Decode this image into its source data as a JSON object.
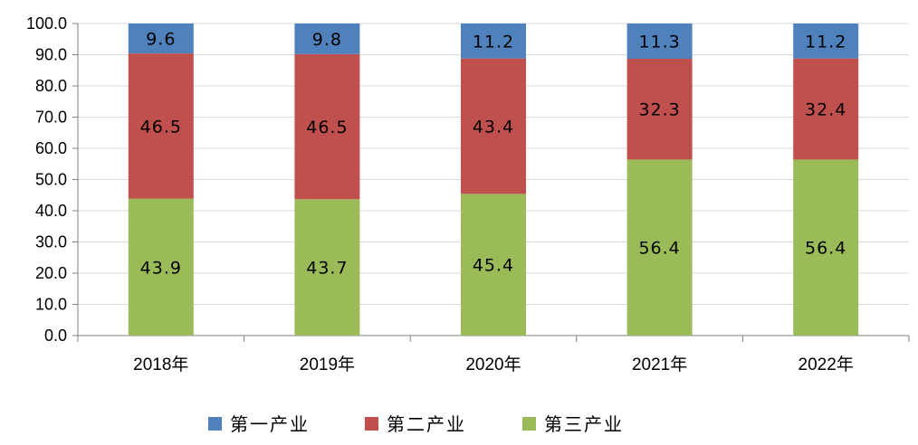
{
  "chart_data": {
    "type": "bar",
    "stacked": true,
    "categories": [
      "2018年",
      "2019年",
      "2020年",
      "2021年",
      "2022年"
    ],
    "series": [
      {
        "name": "第三产业",
        "color": "#9BBB59",
        "values": [
          43.9,
          43.7,
          45.4,
          56.4,
          56.4
        ]
      },
      {
        "name": "第二产业",
        "color": "#C0504D",
        "values": [
          46.5,
          46.5,
          43.4,
          32.3,
          32.4
        ]
      },
      {
        "name": "第一产业",
        "color": "#4F81BD",
        "values": [
          9.6,
          9.8,
          11.2,
          11.3,
          11.2
        ]
      }
    ],
    "legend_order": [
      "第一产业",
      "第二产业",
      "第三产业"
    ],
    "ylim": [
      0,
      100
    ],
    "yticks": [
      "0.0",
      "10.0",
      "20.0",
      "30.0",
      "40.0",
      "50.0",
      "60.0",
      "70.0",
      "80.0",
      "90.0",
      "100.0"
    ],
    "grid": true,
    "legend_position": "bottom",
    "title": "",
    "xlabel": "",
    "ylabel": ""
  }
}
